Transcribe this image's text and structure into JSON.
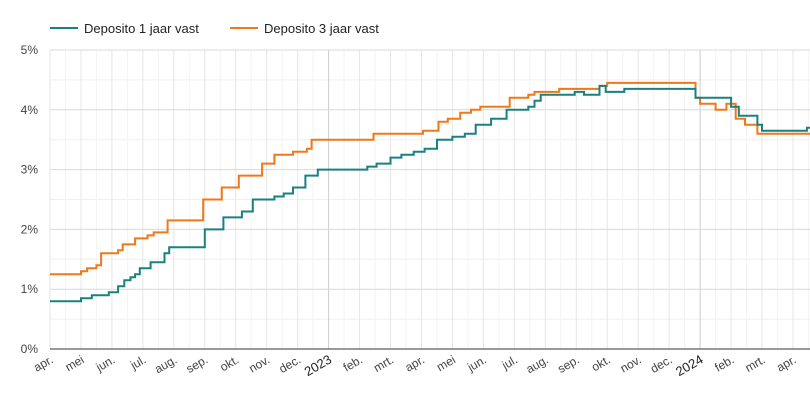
{
  "chart_data": {
    "type": "line",
    "step": true,
    "grid": true,
    "legend_position": "top-left",
    "y_unit_suffix": "%",
    "ylim": [
      0,
      5
    ],
    "y_ticks": [
      "0%",
      "1%",
      "2%",
      "3%",
      "4%",
      "5%"
    ],
    "x_ticks": [
      {
        "label": "apr.",
        "t": 0
      },
      {
        "label": "mei",
        "t": 1
      },
      {
        "label": "jun.",
        "t": 2
      },
      {
        "label": "jul.",
        "t": 3
      },
      {
        "label": "aug.",
        "t": 4
      },
      {
        "label": "sep.",
        "t": 5
      },
      {
        "label": "okt.",
        "t": 6
      },
      {
        "label": "nov.",
        "t": 7
      },
      {
        "label": "dec.",
        "t": 8
      },
      {
        "label": "2023",
        "t": 9,
        "year": true
      },
      {
        "label": "feb.",
        "t": 10
      },
      {
        "label": "mrt.",
        "t": 11
      },
      {
        "label": "apr.",
        "t": 12
      },
      {
        "label": "mei",
        "t": 13
      },
      {
        "label": "jun.",
        "t": 14
      },
      {
        "label": "jul.",
        "t": 15
      },
      {
        "label": "aug.",
        "t": 16
      },
      {
        "label": "sep.",
        "t": 17
      },
      {
        "label": "okt.",
        "t": 18
      },
      {
        "label": "nov.",
        "t": 19
      },
      {
        "label": "dec.",
        "t": 20
      },
      {
        "label": "2024",
        "t": 21,
        "year": true
      },
      {
        "label": "feb.",
        "t": 22
      },
      {
        "label": "mrt.",
        "t": 23
      },
      {
        "label": "apr.",
        "t": 24
      }
    ],
    "xlim": [
      0,
      24.55
    ],
    "series": [
      {
        "name": "Deposito 1 jaar vast",
        "color": "#1a8080",
        "points": [
          [
            0.0,
            0.8
          ],
          [
            1.0,
            0.8
          ],
          [
            1.0,
            0.85
          ],
          [
            1.35,
            0.85
          ],
          [
            1.35,
            0.9
          ],
          [
            1.9,
            0.9
          ],
          [
            1.9,
            0.95
          ],
          [
            2.2,
            0.95
          ],
          [
            2.2,
            1.05
          ],
          [
            2.4,
            1.05
          ],
          [
            2.4,
            1.15
          ],
          [
            2.6,
            1.15
          ],
          [
            2.6,
            1.2
          ],
          [
            2.75,
            1.2
          ],
          [
            2.75,
            1.25
          ],
          [
            2.9,
            1.25
          ],
          [
            2.9,
            1.35
          ],
          [
            3.25,
            1.35
          ],
          [
            3.25,
            1.45
          ],
          [
            3.7,
            1.45
          ],
          [
            3.7,
            1.6
          ],
          [
            3.85,
            1.6
          ],
          [
            3.85,
            1.7
          ],
          [
            5.0,
            1.7
          ],
          [
            5.0,
            2.0
          ],
          [
            5.6,
            2.0
          ],
          [
            5.6,
            2.2
          ],
          [
            6.2,
            2.2
          ],
          [
            6.2,
            2.3
          ],
          [
            6.55,
            2.3
          ],
          [
            6.55,
            2.5
          ],
          [
            7.25,
            2.5
          ],
          [
            7.25,
            2.55
          ],
          [
            7.55,
            2.55
          ],
          [
            7.55,
            2.6
          ],
          [
            7.85,
            2.6
          ],
          [
            7.85,
            2.7
          ],
          [
            8.25,
            2.7
          ],
          [
            8.25,
            2.9
          ],
          [
            8.65,
            2.9
          ],
          [
            8.65,
            3.0
          ],
          [
            10.25,
            3.0
          ],
          [
            10.25,
            3.05
          ],
          [
            10.55,
            3.05
          ],
          [
            10.55,
            3.1
          ],
          [
            11.0,
            3.1
          ],
          [
            11.0,
            3.2
          ],
          [
            11.35,
            3.2
          ],
          [
            11.35,
            3.25
          ],
          [
            11.75,
            3.25
          ],
          [
            11.75,
            3.3
          ],
          [
            12.1,
            3.3
          ],
          [
            12.1,
            3.35
          ],
          [
            12.5,
            3.35
          ],
          [
            12.5,
            3.5
          ],
          [
            13.0,
            3.5
          ],
          [
            13.0,
            3.55
          ],
          [
            13.4,
            3.55
          ],
          [
            13.4,
            3.6
          ],
          [
            13.75,
            3.6
          ],
          [
            13.75,
            3.75
          ],
          [
            14.25,
            3.75
          ],
          [
            14.25,
            3.85
          ],
          [
            14.75,
            3.85
          ],
          [
            14.75,
            4.0
          ],
          [
            15.45,
            4.0
          ],
          [
            15.45,
            4.05
          ],
          [
            15.65,
            4.05
          ],
          [
            15.65,
            4.15
          ],
          [
            15.85,
            4.15
          ],
          [
            15.85,
            4.25
          ],
          [
            16.95,
            4.25
          ],
          [
            16.95,
            4.3
          ],
          [
            17.25,
            4.3
          ],
          [
            17.25,
            4.25
          ],
          [
            17.75,
            4.25
          ],
          [
            17.75,
            4.4
          ],
          [
            17.95,
            4.4
          ],
          [
            17.95,
            4.3
          ],
          [
            18.55,
            4.3
          ],
          [
            18.55,
            4.35
          ],
          [
            20.85,
            4.35
          ],
          [
            20.85,
            4.2
          ],
          [
            22.0,
            4.2
          ],
          [
            22.0,
            4.05
          ],
          [
            22.25,
            4.05
          ],
          [
            22.25,
            3.9
          ],
          [
            22.85,
            3.9
          ],
          [
            22.85,
            3.75
          ],
          [
            23.0,
            3.75
          ],
          [
            23.0,
            3.65
          ],
          [
            24.45,
            3.65
          ],
          [
            24.45,
            3.7
          ],
          [
            24.55,
            3.7
          ]
        ]
      },
      {
        "name": "Deposito 3 jaar vast",
        "color": "#f07818",
        "points": [
          [
            0.0,
            1.25
          ],
          [
            1.0,
            1.25
          ],
          [
            1.0,
            1.3
          ],
          [
            1.2,
            1.3
          ],
          [
            1.2,
            1.35
          ],
          [
            1.5,
            1.35
          ],
          [
            1.5,
            1.4
          ],
          [
            1.65,
            1.4
          ],
          [
            1.65,
            1.6
          ],
          [
            2.2,
            1.6
          ],
          [
            2.2,
            1.65
          ],
          [
            2.35,
            1.65
          ],
          [
            2.35,
            1.75
          ],
          [
            2.75,
            1.75
          ],
          [
            2.75,
            1.85
          ],
          [
            3.15,
            1.85
          ],
          [
            3.15,
            1.9
          ],
          [
            3.35,
            1.9
          ],
          [
            3.35,
            1.95
          ],
          [
            3.8,
            1.95
          ],
          [
            3.8,
            2.15
          ],
          [
            4.95,
            2.15
          ],
          [
            4.95,
            2.5
          ],
          [
            5.55,
            2.5
          ],
          [
            5.55,
            2.7
          ],
          [
            6.1,
            2.7
          ],
          [
            6.1,
            2.9
          ],
          [
            6.85,
            2.9
          ],
          [
            6.85,
            3.1
          ],
          [
            7.25,
            3.1
          ],
          [
            7.25,
            3.25
          ],
          [
            7.85,
            3.25
          ],
          [
            7.85,
            3.3
          ],
          [
            8.3,
            3.3
          ],
          [
            8.3,
            3.35
          ],
          [
            8.45,
            3.35
          ],
          [
            8.45,
            3.5
          ],
          [
            10.45,
            3.5
          ],
          [
            10.45,
            3.6
          ],
          [
            12.05,
            3.6
          ],
          [
            12.05,
            3.65
          ],
          [
            12.55,
            3.65
          ],
          [
            12.55,
            3.8
          ],
          [
            12.85,
            3.8
          ],
          [
            12.85,
            3.85
          ],
          [
            13.25,
            3.85
          ],
          [
            13.25,
            3.95
          ],
          [
            13.6,
            3.95
          ],
          [
            13.6,
            4.0
          ],
          [
            13.9,
            4.0
          ],
          [
            13.9,
            4.05
          ],
          [
            14.85,
            4.05
          ],
          [
            14.85,
            4.2
          ],
          [
            15.45,
            4.2
          ],
          [
            15.45,
            4.25
          ],
          [
            15.65,
            4.25
          ],
          [
            15.65,
            4.3
          ],
          [
            16.45,
            4.3
          ],
          [
            16.45,
            4.35
          ],
          [
            17.75,
            4.35
          ],
          [
            17.75,
            4.4
          ],
          [
            18.0,
            4.4
          ],
          [
            18.0,
            4.45
          ],
          [
            20.85,
            4.45
          ],
          [
            20.85,
            4.2
          ],
          [
            21.0,
            4.2
          ],
          [
            21.0,
            4.1
          ],
          [
            21.5,
            4.1
          ],
          [
            21.5,
            4.0
          ],
          [
            21.85,
            4.0
          ],
          [
            21.85,
            4.1
          ],
          [
            22.15,
            4.1
          ],
          [
            22.15,
            3.85
          ],
          [
            22.45,
            3.85
          ],
          [
            22.45,
            3.75
          ],
          [
            22.85,
            3.75
          ],
          [
            22.85,
            3.6
          ],
          [
            24.55,
            3.6
          ]
        ]
      }
    ]
  }
}
